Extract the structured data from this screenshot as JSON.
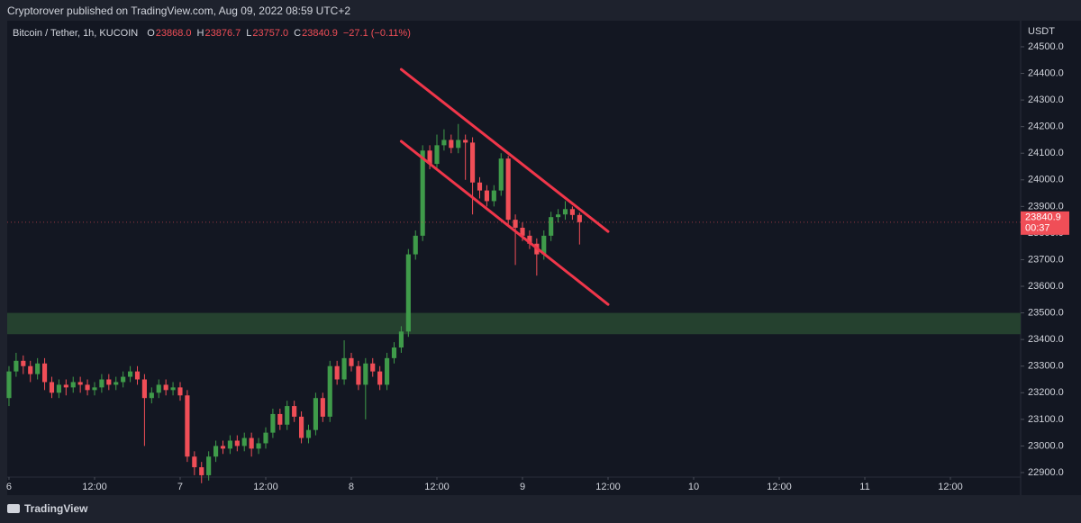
{
  "chart_data": {
    "type": "candlestick",
    "published": "Cryptorover published on TradingView.com, Aug 09, 2022 08:59 UTC+2",
    "symbol": "Bitcoin / Tether, 1h, KUCOIN",
    "ohlc_legend": [
      {
        "key": "O",
        "text": "23868.0"
      },
      {
        "key": "H",
        "text": "23876.7"
      },
      {
        "key": "L",
        "text": "23757.0"
      },
      {
        "key": "C",
        "text": "23840.9"
      }
    ],
    "change": "−27.1 (−0.11%)",
    "currency": "USDT",
    "price_tag": {
      "price": "23840.9",
      "countdown": "00:37"
    },
    "footer": "TradingView",
    "up_color": "#3f9b4a",
    "down_color": "#f04e57",
    "x": [
      0,
      1,
      2,
      3,
      4,
      5,
      6,
      7,
      8,
      9,
      10,
      11,
      12,
      13,
      14,
      15,
      16,
      17,
      18,
      19,
      20,
      21,
      22,
      23,
      24,
      25,
      26,
      27,
      28,
      29,
      30,
      31,
      32,
      33,
      34,
      35,
      36,
      37,
      38,
      39,
      40,
      41,
      42,
      43,
      44,
      45,
      46,
      47,
      48,
      49,
      50,
      51,
      52,
      53,
      54,
      55,
      56,
      57,
      58,
      59,
      60,
      61,
      62,
      63,
      64,
      65,
      66,
      67,
      68,
      69,
      70,
      71,
      72,
      73,
      74,
      75,
      76,
      77,
      78,
      79,
      80
    ],
    "open": [
      23180,
      23280,
      23320,
      23300,
      23270,
      23310,
      23240,
      23200,
      23230,
      23220,
      23240,
      23230,
      23210,
      23220,
      23250,
      23230,
      23240,
      23260,
      23280,
      23250,
      23180,
      23200,
      23230,
      23210,
      23220,
      23190,
      22960,
      22920,
      22890,
      22960,
      23000,
      22990,
      23020,
      23000,
      23030,
      22990,
      23010,
      23050,
      23120,
      23080,
      23150,
      23110,
      23030,
      23060,
      23180,
      23110,
      23300,
      23250,
      23330,
      23300,
      23230,
      23310,
      23280,
      23230,
      23330,
      23370,
      23430,
      23720,
      23790,
      24110,
      24060,
      24130,
      24150,
      24120,
      24150,
      24140,
      23990,
      23960,
      23920,
      23960,
      24080,
      23850,
      23820,
      23790,
      23760,
      23720,
      23790,
      23860,
      23870,
      23890,
      23868
    ],
    "high": [
      23300,
      23350,
      23340,
      23320,
      23330,
      23330,
      23260,
      23250,
      23250,
      23260,
      23260,
      23250,
      23240,
      23270,
      23270,
      23260,
      23280,
      23300,
      23300,
      23270,
      23220,
      23250,
      23250,
      23240,
      23240,
      23210,
      22980,
      22940,
      22980,
      23020,
      23020,
      23040,
      23040,
      23050,
      23050,
      23030,
      23070,
      23140,
      23140,
      23170,
      23170,
      23130,
      23080,
      23200,
      23200,
      23320,
      23320,
      23397,
      23350,
      23320,
      23330,
      23330,
      23300,
      23350,
      23390,
      23450,
      23740,
      23810,
      24130,
      24130,
      24170,
      24190,
      24170,
      24210,
      24170,
      24160,
      24010,
      23980,
      23980,
      24100,
      24090,
      23870,
      23840,
      23810,
      23780,
      23810,
      23880,
      23890,
      23920,
      23900,
      23876.7
    ],
    "low": [
      23150,
      23260,
      23270,
      23240,
      23250,
      23210,
      23180,
      23180,
      23190,
      23200,
      23200,
      23190,
      23190,
      23200,
      23210,
      23210,
      23220,
      23240,
      23230,
      23000,
      23160,
      23180,
      23190,
      23190,
      23170,
      22940,
      22890,
      22860,
      22870,
      22940,
      22970,
      22970,
      22980,
      22980,
      22960,
      22970,
      22990,
      23030,
      23060,
      23060,
      23090,
      23010,
      23010,
      23040,
      23090,
      23090,
      23230,
      23230,
      23280,
      23210,
      23100,
      23260,
      23210,
      23210,
      23310,
      23350,
      23410,
      23700,
      23770,
      24040,
      24040,
      24110,
      24100,
      24100,
      24000,
      23870,
      23930,
      23900,
      23900,
      23940,
      23830,
      23680,
      23770,
      23740,
      23640,
      23700,
      23770,
      23840,
      23850,
      23850,
      23757
    ],
    "close": [
      23280,
      23320,
      23300,
      23270,
      23310,
      23240,
      23200,
      23230,
      23220,
      23240,
      23230,
      23210,
      23220,
      23250,
      23230,
      23240,
      23260,
      23280,
      23250,
      23180,
      23200,
      23230,
      23210,
      23220,
      23190,
      22960,
      22920,
      22890,
      22960,
      23000,
      22990,
      23020,
      23000,
      23030,
      22990,
      23010,
      23050,
      23120,
      23080,
      23150,
      23110,
      23030,
      23060,
      23180,
      23110,
      23300,
      23250,
      23330,
      23300,
      23230,
      23310,
      23280,
      23230,
      23330,
      23370,
      23430,
      23720,
      23790,
      24110,
      24060,
      24130,
      24150,
      24120,
      24150,
      24140,
      23990,
      23960,
      23920,
      23960,
      24080,
      23850,
      23820,
      23790,
      23760,
      23720,
      23790,
      23860,
      23870,
      23890,
      23868,
      23840.9
    ],
    "zone": {
      "low": 23420,
      "high": 23500,
      "color": "#25412f"
    },
    "channel": {
      "color": "#f0364a",
      "upper": [
        [
          55,
          24415
        ],
        [
          84,
          23806
        ]
      ],
      "lower": [
        [
          55,
          24145
        ],
        [
          84,
          23532
        ]
      ]
    },
    "xlim": [
      -0.25,
      141.85
    ],
    "xticks": [
      {
        "value": 0,
        "label": "6"
      },
      {
        "value": 12,
        "label": "12:00"
      },
      {
        "value": 24,
        "label": "7"
      },
      {
        "value": 36,
        "label": "12:00"
      },
      {
        "value": 48,
        "label": "8"
      },
      {
        "value": 60,
        "label": "12:00"
      },
      {
        "value": 72,
        "label": "9"
      },
      {
        "value": 84,
        "label": "12:00"
      },
      {
        "value": 96,
        "label": "10"
      },
      {
        "value": 108,
        "label": "12:00"
      },
      {
        "value": 120,
        "label": "11"
      },
      {
        "value": 132,
        "label": "12:00"
      }
    ],
    "ylim": [
      22883,
      24598
    ],
    "yticks": [
      {
        "value": 22900,
        "label": "22900.0"
      },
      {
        "value": 23000,
        "label": "23000.0"
      },
      {
        "value": 23100,
        "label": "23100.0"
      },
      {
        "value": 23200,
        "label": "23200.0"
      },
      {
        "value": 23300,
        "label": "23300.0"
      },
      {
        "value": 23400,
        "label": "23400.0"
      },
      {
        "value": 23500,
        "label": "23500.0"
      },
      {
        "value": 23600,
        "label": "23600.0"
      },
      {
        "value": 23700,
        "label": "23700.0"
      },
      {
        "value": 23800,
        "label": "23800.0"
      },
      {
        "value": 23900,
        "label": "23900.0"
      },
      {
        "value": 24000,
        "label": "24000.0"
      },
      {
        "value": 24100,
        "label": "24100.0"
      },
      {
        "value": 24200,
        "label": "24200.0"
      },
      {
        "value": 24300,
        "label": "24300.0"
      },
      {
        "value": 24400,
        "label": "24400.0"
      },
      {
        "value": 24500,
        "label": "24500.0"
      }
    ]
  }
}
